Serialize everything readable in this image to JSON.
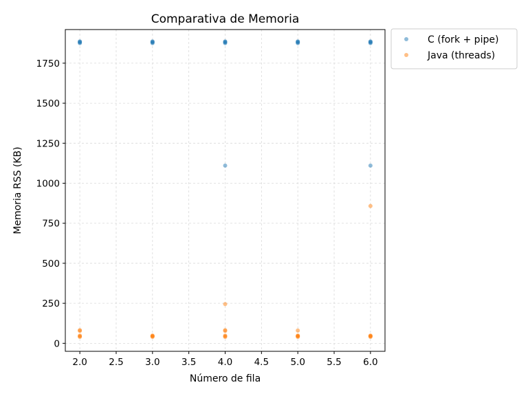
{
  "chart_data": {
    "type": "scatter",
    "title": "Comparativa de Memoria",
    "xlabel": "Número de fila",
    "ylabel": "Memoria RSS (KB)",
    "xlim": [
      1.8,
      6.2
    ],
    "ylim": [
      -50,
      1960
    ],
    "x_ticks": [
      2.0,
      2.5,
      3.0,
      3.5,
      4.0,
      4.5,
      5.0,
      5.5,
      6.0
    ],
    "x_tick_labels": [
      "2.0",
      "2.5",
      "3.0",
      "3.5",
      "4.0",
      "4.5",
      "5.0",
      "5.5",
      "6.0"
    ],
    "y_ticks": [
      0,
      250,
      500,
      750,
      1000,
      1250,
      1500,
      1750
    ],
    "y_tick_labels": [
      "0",
      "250",
      "500",
      "750",
      "1000",
      "1250",
      "1500",
      "1750"
    ],
    "grid": true,
    "legend_position": "outside-top-right",
    "series": [
      {
        "name": "C (fork + pipe)",
        "color": "#1f77b4",
        "x": [
          2,
          2,
          2,
          2,
          3,
          3,
          3,
          3,
          4,
          4,
          4,
          4,
          4,
          5,
          5,
          5,
          5,
          6,
          6,
          6,
          6,
          6
        ],
        "y": [
          1875,
          1880,
          1883,
          1886,
          1875,
          1880,
          1883,
          1886,
          1875,
          1880,
          1883,
          1886,
          1110,
          1875,
          1880,
          1883,
          1886,
          1875,
          1880,
          1883,
          1886,
          1110
        ]
      },
      {
        "name": "Java (threads)",
        "color": "#ff7f0e",
        "x": [
          2,
          2,
          2,
          2,
          2,
          3,
          3,
          3,
          3,
          4,
          4,
          4,
          4,
          4,
          4,
          5,
          5,
          5,
          5,
          5,
          6,
          6,
          6,
          6,
          6
        ],
        "y": [
          40,
          44,
          48,
          78,
          82,
          40,
          44,
          46,
          48,
          40,
          44,
          48,
          78,
          82,
          245,
          40,
          44,
          46,
          48,
          80,
          40,
          44,
          46,
          48,
          858
        ]
      }
    ]
  }
}
